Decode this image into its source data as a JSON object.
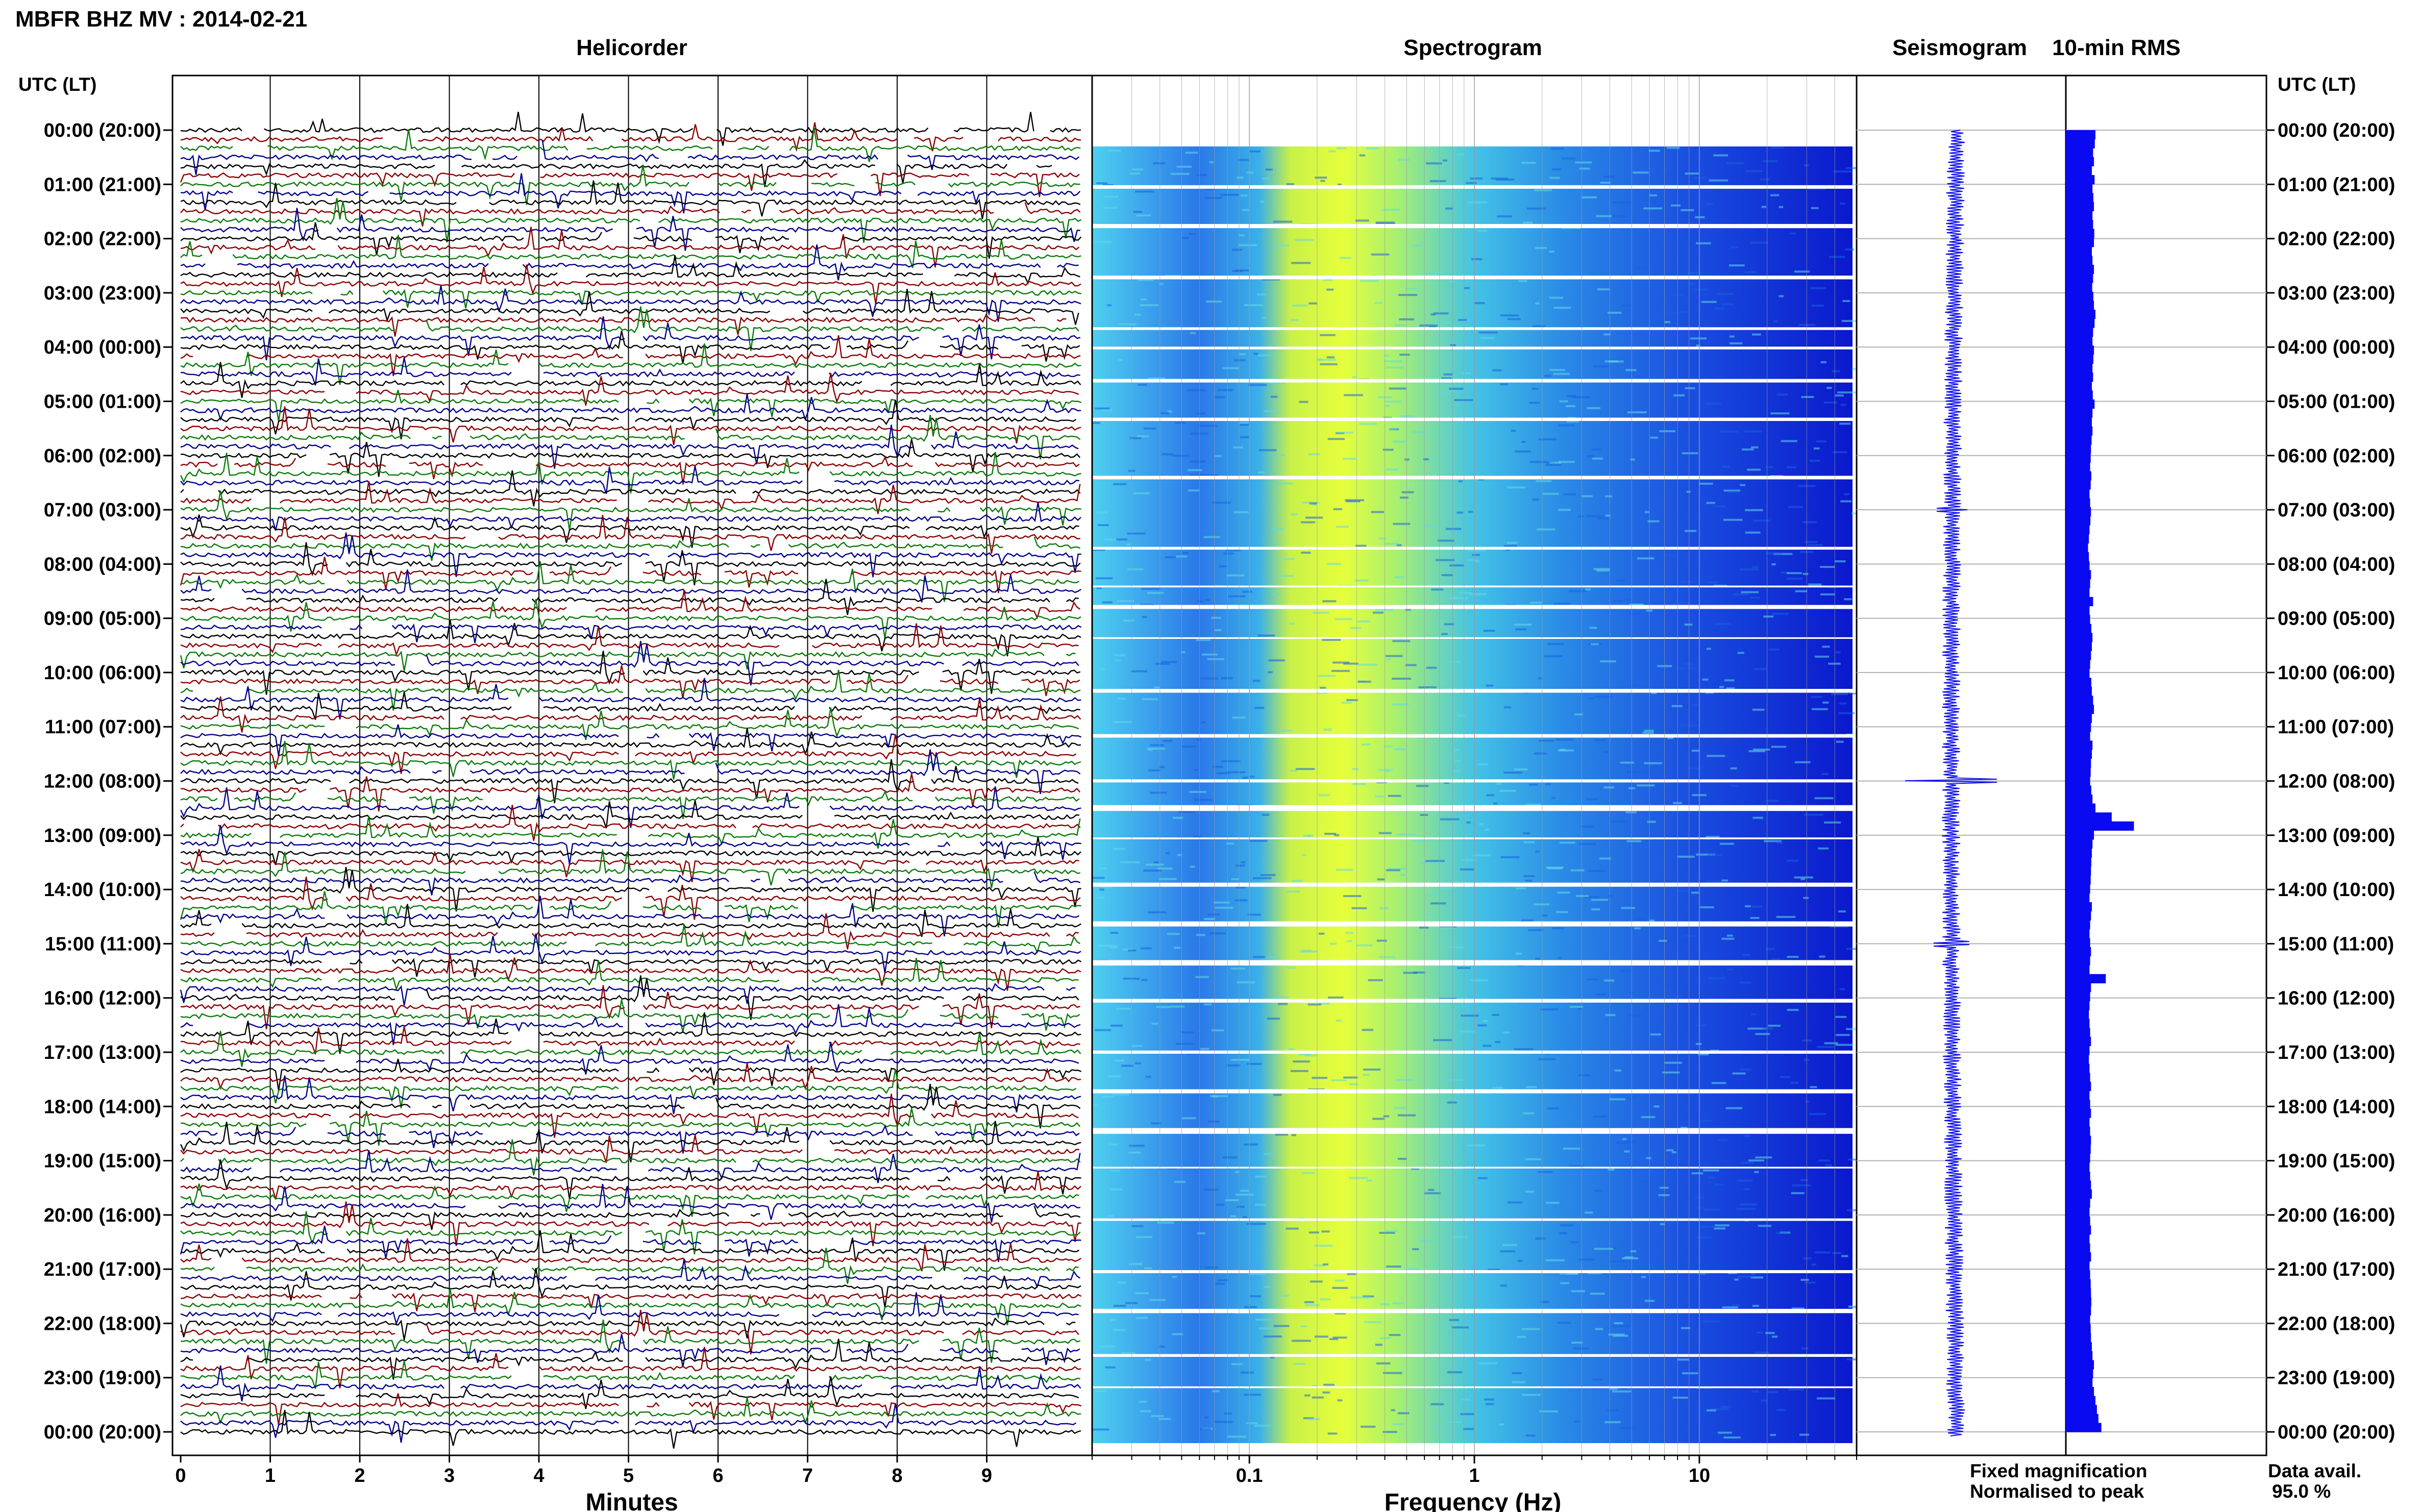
{
  "title": "MBFR BHZ MV : 2014-02-21",
  "panels": {
    "helicorder": "Helicorder",
    "spectrogram": "Spectrogram",
    "seismogram": "Seismogram",
    "rms": "10-min RMS"
  },
  "axis_labels": {
    "left_time": "UTC (LT)",
    "right_time": "UTC (LT)",
    "minutes": "Minutes",
    "frequency": "Frequency (Hz)"
  },
  "legend": {
    "fixed": "Fixed magnification",
    "normalised": "Normalised to peak",
    "fixed_color": "#1414ff",
    "normalised_color": "#ff1010"
  },
  "availability": {
    "label": "Data avail.",
    "value": "95.0 %"
  },
  "colors": {
    "trace_cycle": [
      "#000000",
      "#8b0000",
      "#0a7a0a",
      "#00008b"
    ],
    "seismogram": "#1010ee",
    "rms_bar": "#0a0af0"
  },
  "chart_data": {
    "type": "heatmap",
    "time_labels": [
      "00:00 (20:00)",
      "01:00 (21:00)",
      "02:00 (22:00)",
      "03:00 (23:00)",
      "04:00 (00:00)",
      "05:00 (01:00)",
      "06:00 (02:00)",
      "07:00 (03:00)",
      "08:00 (04:00)",
      "09:00 (05:00)",
      "10:00 (06:00)",
      "11:00 (07:00)",
      "12:00 (08:00)",
      "13:00 (09:00)",
      "14:00 (10:00)",
      "15:00 (11:00)",
      "16:00 (12:00)",
      "17:00 (13:00)",
      "18:00 (14:00)",
      "19:00 (15:00)",
      "20:00 (16:00)",
      "21:00 (17:00)",
      "22:00 (18:00)",
      "23:00 (19:00)",
      "00:00 (20:00)"
    ],
    "minutes_ticks": [
      "0",
      "1",
      "2",
      "3",
      "4",
      "5",
      "6",
      "7",
      "8",
      "9"
    ],
    "freq_ticks": [
      "0.1",
      "1",
      "10"
    ],
    "freq_range_hz": [
      0.02,
      50
    ],
    "helicorder_lines": 145,
    "rms_10min": [
      1.0,
      0.98,
      0.92,
      0.95,
      0.88,
      0.97,
      0.9,
      0.93,
      0.95,
      0.9,
      0.92,
      0.96,
      0.95,
      0.88,
      0.9,
      0.95,
      0.92,
      0.89,
      0.93,
      0.95,
      1.0,
      0.97,
      0.92,
      0.9,
      0.95,
      0.93,
      0.9,
      0.92,
      0.88,
      0.91,
      0.97,
      0.9,
      0.88,
      0.9,
      0.87,
      0.85,
      0.84,
      0.82,
      0.86,
      0.84,
      0.8,
      0.82,
      0.85,
      0.83,
      0.8,
      0.78,
      0.75,
      0.78,
      0.8,
      0.85,
      0.82,
      0.8,
      0.92,
      0.8,
      0.82,
      0.86,
      0.9,
      0.88,
      0.85,
      0.82,
      0.8,
      0.86,
      0.88,
      0.92,
      0.95,
      0.88,
      0.85,
      0.82,
      0.9,
      0.88,
      0.85,
      0.84,
      0.82,
      0.86,
      0.9,
      1.0,
      1.55,
      2.3,
      0.95,
      0.9,
      0.88,
      0.86,
      0.85,
      0.84,
      0.82,
      0.8,
      0.88,
      0.85,
      0.82,
      0.8,
      0.82,
      0.85,
      0.82,
      0.8,
      1.35,
      0.85,
      0.82,
      0.8,
      0.78,
      0.8,
      0.82,
      0.85,
      0.8,
      0.78,
      0.8,
      0.82,
      0.85,
      0.8,
      0.82,
      0.85,
      0.8,
      0.82,
      0.85,
      0.84,
      0.82,
      0.8,
      0.82,
      0.85,
      0.88,
      0.82,
      0.8,
      0.82,
      0.85,
      0.8,
      0.82,
      0.85,
      0.8,
      0.82,
      0.84,
      0.85,
      0.86,
      0.85,
      0.82,
      0.84,
      0.85,
      0.88,
      0.9,
      0.95,
      0.92,
      0.9,
      0.95,
      1.0,
      1.05,
      1.1,
      1.2
    ]
  }
}
